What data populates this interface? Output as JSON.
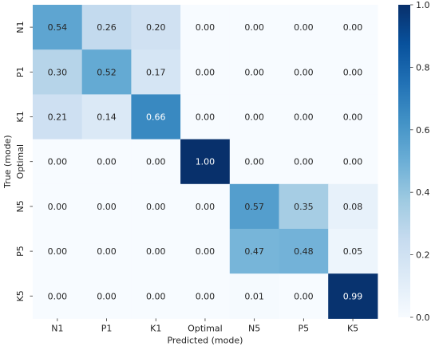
{
  "chart_data": {
    "type": "heatmap",
    "title": "",
    "xlabel": "Predicted (mode)",
    "ylabel": "True (mode)",
    "x_categories": [
      "N1",
      "P1",
      "K1",
      "Optimal",
      "N5",
      "P5",
      "K5"
    ],
    "y_categories": [
      "N1",
      "P1",
      "K1",
      "Optimal",
      "N5",
      "P5",
      "K5"
    ],
    "values": [
      [
        0.54,
        0.26,
        0.2,
        0.0,
        0.0,
        0.0,
        0.0
      ],
      [
        0.3,
        0.52,
        0.17,
        0.0,
        0.0,
        0.0,
        0.0
      ],
      [
        0.21,
        0.14,
        0.66,
        0.0,
        0.0,
        0.0,
        0.0
      ],
      [
        0.0,
        0.0,
        0.0,
        1.0,
        0.0,
        0.0,
        0.0
      ],
      [
        0.0,
        0.0,
        0.0,
        0.0,
        0.57,
        0.35,
        0.08
      ],
      [
        0.0,
        0.0,
        0.0,
        0.0,
        0.47,
        0.48,
        0.05
      ],
      [
        0.0,
        0.0,
        0.0,
        0.0,
        0.01,
        0.0,
        0.99
      ]
    ],
    "cell_labels": [
      [
        "0.54",
        "0.26",
        "0.20",
        "0.00",
        "0.00",
        "0.00",
        "0.00"
      ],
      [
        "0.30",
        "0.52",
        "0.17",
        "0.00",
        "0.00",
        "0.00",
        "0.00"
      ],
      [
        "0.21",
        "0.14",
        "0.66",
        "0.00",
        "0.00",
        "0.00",
        "0.00"
      ],
      [
        "0.00",
        "0.00",
        "0.00",
        "1.00",
        "0.00",
        "0.00",
        "0.00"
      ],
      [
        "0.00",
        "0.00",
        "0.00",
        "0.00",
        "0.57",
        "0.35",
        "0.08"
      ],
      [
        "0.00",
        "0.00",
        "0.00",
        "0.00",
        "0.47",
        "0.48",
        "0.05"
      ],
      [
        "0.00",
        "0.00",
        "0.00",
        "0.00",
        "0.01",
        "0.00",
        "0.99"
      ]
    ],
    "colorbar": {
      "range": [
        0.0,
        1.0
      ],
      "ticks": [
        0.0,
        0.2,
        0.4,
        0.6,
        0.8,
        1.0
      ],
      "tick_labels": [
        "0.0",
        "0.2",
        "0.4",
        "0.6",
        "0.8",
        "1.0"
      ],
      "colormap": "Blues",
      "color_stops": [
        "#f7fbff",
        "#deebf7",
        "#c6dbef",
        "#9ecae1",
        "#6baed6",
        "#4292c6",
        "#2171b5",
        "#08519c",
        "#08306b"
      ]
    },
    "grid": false
  }
}
